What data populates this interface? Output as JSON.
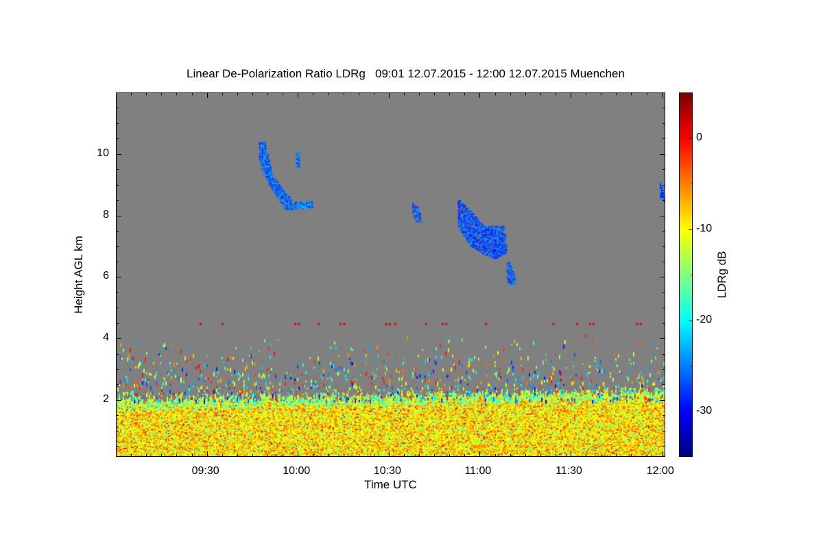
{
  "chart_data": {
    "type": "heatmap",
    "title": "Linear De-Polarization Ratio LDRg   09:01 12.07.2015 - 12:00 12.07.2015 Muenchen",
    "xlabel": "Time UTC",
    "ylabel": "Height AGL km",
    "colorbar_label": "LDRg dB",
    "xlim_hours": [
      9.0,
      12.02
    ],
    "ylim_km": [
      0.15,
      12.0
    ],
    "clim_db": [
      -35,
      5
    ],
    "x_ticks": [
      {
        "v": 9.5,
        "label": "09:30"
      },
      {
        "v": 10.0,
        "label": "10:00"
      },
      {
        "v": 10.5,
        "label": "10:30"
      },
      {
        "v": 11.0,
        "label": "11:00"
      },
      {
        "v": 11.5,
        "label": "11:30"
      },
      {
        "v": 12.0,
        "label": "12:00"
      }
    ],
    "y_ticks": [
      {
        "v": 2,
        "label": "2"
      },
      {
        "v": 4,
        "label": "4"
      },
      {
        "v": 6,
        "label": "6"
      },
      {
        "v": 8,
        "label": "8"
      },
      {
        "v": 10,
        "label": "10"
      }
    ],
    "colorbar_ticks": [
      {
        "v": 0,
        "label": "0"
      },
      {
        "v": -10,
        "label": "-10"
      },
      {
        "v": -20,
        "label": "-20"
      },
      {
        "v": -30,
        "label": "-30"
      }
    ],
    "background_color": "#808080",
    "colormap": [
      "#00007f",
      "#0000ff",
      "#007fff",
      "#00ffff",
      "#7fff7f",
      "#ffff00",
      "#ff7f00",
      "#ff0000",
      "#7f0000"
    ],
    "boundary_layer": {
      "top_km_start": 2.0,
      "top_km_end": 2.3,
      "mean_db": -9,
      "spread_db": 5
    },
    "cloud_features": [
      {
        "name": "cirrus-streak",
        "ldr_db": -26,
        "polygon": [
          [
            9.78,
            10.4
          ],
          [
            9.82,
            10.4
          ],
          [
            9.86,
            9.3
          ],
          [
            9.96,
            8.6
          ],
          [
            9.97,
            8.2
          ],
          [
            9.93,
            8.2
          ],
          [
            9.85,
            8.9
          ],
          [
            9.79,
            9.6
          ]
        ]
      },
      {
        "name": "cirrus-small",
        "ldr_db": -26,
        "polygon": [
          [
            9.99,
            10.1
          ],
          [
            10.01,
            10.1
          ],
          [
            10.01,
            9.6
          ],
          [
            9.99,
            9.6
          ]
        ]
      },
      {
        "name": "cirrus-tail",
        "ldr_db": -25,
        "polygon": [
          [
            9.97,
            8.45
          ],
          [
            10.08,
            8.5
          ],
          [
            10.08,
            8.25
          ],
          [
            9.97,
            8.2
          ]
        ]
      },
      {
        "name": "cirrus-patch",
        "ldr_db": -26,
        "polygon": [
          [
            10.63,
            8.4
          ],
          [
            10.66,
            8.3
          ],
          [
            10.68,
            7.8
          ],
          [
            10.65,
            7.8
          ],
          [
            10.63,
            8.0
          ]
        ]
      },
      {
        "name": "cirrus-main",
        "ldr_db": -27,
        "polygon": [
          [
            10.88,
            8.55
          ],
          [
            10.93,
            8.3
          ],
          [
            11.02,
            7.7
          ],
          [
            11.13,
            7.7
          ],
          [
            11.15,
            6.8
          ],
          [
            11.08,
            6.6
          ],
          [
            11.0,
            6.8
          ],
          [
            10.95,
            7.0
          ],
          [
            10.88,
            7.6
          ]
        ]
      },
      {
        "name": "cirrus-fallstreak",
        "ldr_db": -26,
        "polygon": [
          [
            11.15,
            6.6
          ],
          [
            11.18,
            6.3
          ],
          [
            11.2,
            5.8
          ],
          [
            11.16,
            5.75
          ],
          [
            11.14,
            6.1
          ]
        ]
      },
      {
        "name": "cirrus-edge",
        "ldr_db": -27,
        "polygon": [
          [
            11.99,
            9.1
          ],
          [
            12.02,
            8.6
          ],
          [
            12.02,
            8.4
          ],
          [
            11.99,
            8.6
          ]
        ]
      }
    ],
    "aerosol_layer_4_5km": {
      "height_km": 4.5,
      "ldr_db": 1,
      "times_hours": [
        9.46,
        9.58,
        9.98,
        10.0,
        10.11,
        10.23,
        10.25,
        10.48,
        10.5,
        10.53,
        10.7,
        10.79,
        10.81,
        11.03,
        11.4,
        11.53,
        11.6,
        11.62,
        11.86,
        11.88
      ]
    }
  }
}
